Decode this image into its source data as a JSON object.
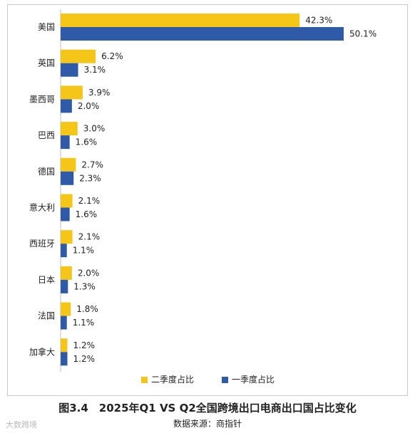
{
  "caption": "图3.4　2025年Q1 VS Q2全国跨境出口电商出口国占比变化",
  "source": "数据来源：商指针",
  "watermark": "大数跨境",
  "chart_data": {
    "type": "bar",
    "orientation": "horizontal",
    "categories": [
      "美国",
      "英国",
      "墨西哥",
      "巴西",
      "德国",
      "意大利",
      "西班牙",
      "日本",
      "法国",
      "加拿大"
    ],
    "series": [
      {
        "name": "二季度占比",
        "color": "#f5c518",
        "values": [
          42.3,
          6.2,
          3.9,
          3.0,
          2.7,
          2.1,
          2.1,
          2.0,
          1.8,
          1.2
        ],
        "labels": [
          "42.3%",
          "6.2%",
          "3.9%",
          "3.0%",
          "2.7%",
          "2.1%",
          "2.1%",
          "2.0%",
          "1.8%",
          "1.2%"
        ]
      },
      {
        "name": "一季度占比",
        "color": "#2e5aa8",
        "values": [
          50.1,
          3.1,
          2.0,
          1.6,
          2.3,
          1.6,
          1.1,
          1.3,
          1.1,
          1.2
        ],
        "labels": [
          "50.1%",
          "3.1%",
          "2.0%",
          "1.6%",
          "2.3%",
          "1.6%",
          "1.1%",
          "1.3%",
          "1.1%",
          "1.2%"
        ]
      }
    ],
    "xlim": [
      0,
      50.1
    ],
    "legend": "bottom",
    "grid": false
  }
}
